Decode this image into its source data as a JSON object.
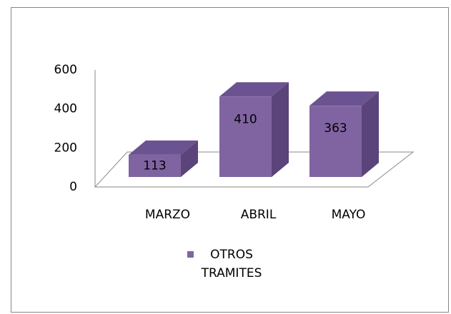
{
  "chart_data": {
    "type": "bar3d",
    "categories": [
      "MARZO",
      "ABRIL",
      "MAYO"
    ],
    "series": [
      {
        "name": "OTROS TRAMITES",
        "color": "#8064a2",
        "values": [
          113,
          410,
          363
        ]
      }
    ],
    "ylim": [
      0,
      600
    ],
    "yticks": [
      0,
      200,
      400,
      600
    ]
  }
}
